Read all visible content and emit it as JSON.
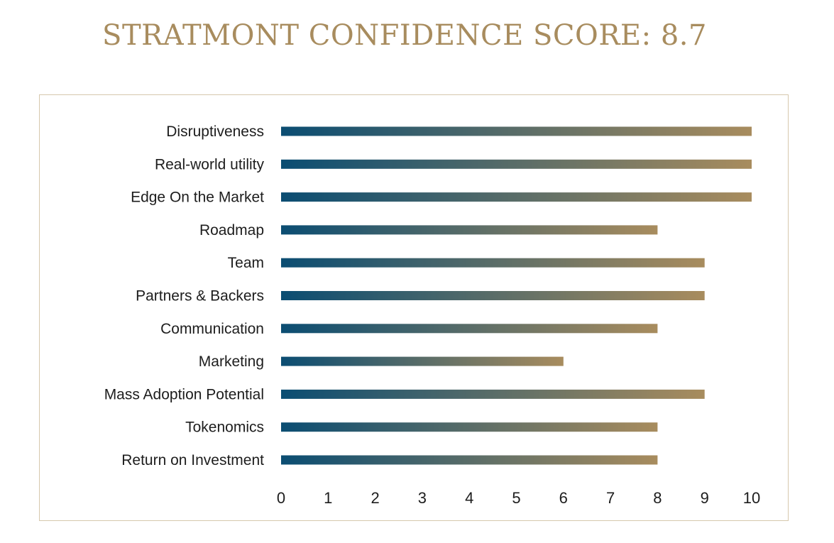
{
  "title": "STRATMONT CONFIDENCE SCORE: 8.7",
  "colors": {
    "bar_start": "#0b4d72",
    "bar_end": "#a88c5e",
    "title": "#a88c5e",
    "frame": "#d6c8ad"
  },
  "chart_data": {
    "type": "bar",
    "orientation": "horizontal",
    "categories": [
      "Disruptiveness",
      "Real-world utility",
      "Edge On the Market",
      "Roadmap",
      "Team",
      "Partners & Backers",
      "Communication",
      "Marketing",
      "Mass Adoption Potential",
      "Tokenomics",
      "Return on Investment"
    ],
    "values": [
      10,
      10,
      10,
      8,
      9,
      9,
      8,
      6,
      9,
      8,
      8
    ],
    "xlim": [
      0,
      10
    ],
    "xticks": [
      "0",
      "1",
      "2",
      "3",
      "4",
      "5",
      "6",
      "7",
      "8",
      "9",
      "10"
    ],
    "grid": false,
    "legend": "none"
  }
}
